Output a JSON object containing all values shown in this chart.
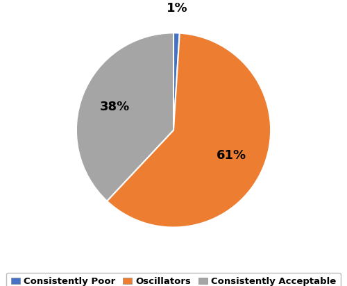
{
  "labels": [
    "Consistently Poor",
    "Oscillators",
    "Consistently Acceptable"
  ],
  "values": [
    1,
    61,
    38
  ],
  "colors": [
    "#4472C4",
    "#ED7D31",
    "#A5A5A5"
  ],
  "pct_labels": [
    "1%",
    "61%",
    "38%"
  ],
  "legend_labels": [
    "Consistently Poor",
    "Oscillators",
    "Consistently Acceptable"
  ],
  "startangle": 90,
  "figsize": [
    5.0,
    4.12
  ],
  "dpi": 100,
  "background_color": "#FFFFFF",
  "pct_fontsize": 13,
  "pct_fontweight": "bold",
  "legend_fontsize": 9.5,
  "wedge_edgecolor": "#FFFFFF",
  "wedge_linewidth": 1.5
}
